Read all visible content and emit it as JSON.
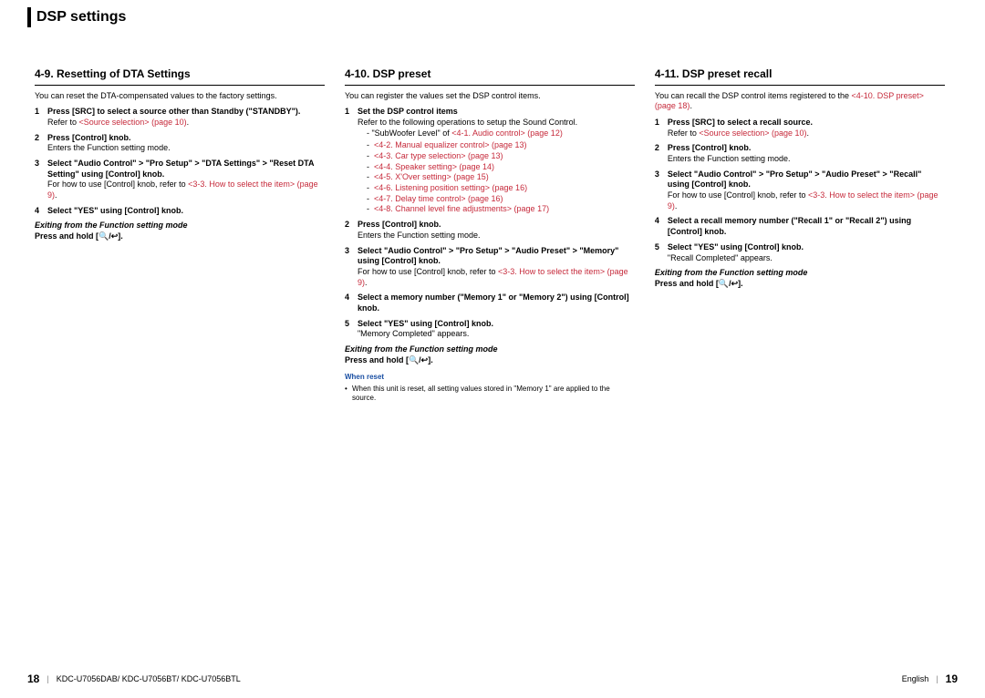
{
  "chapter_title": "DSP settings",
  "columns": [
    {
      "subhead": "4-9.  Resetting of DTA Settings",
      "intro": "You can reset the DTA-compensated values to the factory settings.",
      "steps": [
        {
          "title": "Press [SRC] to select a source other than Standby (\"STANDBY\").",
          "body_prefix": "Refer to ",
          "link": "<Source selection> (page 10)",
          "body_suffix": "."
        },
        {
          "title": "Press [Control] knob.",
          "body": "Enters the Function setting mode."
        },
        {
          "title": "Select \"Audio Control\" > \"Pro Setup\" > \"DTA Settings\" > \"Reset DTA Setting\" using [Control] knob.",
          "body_prefix": "For how to use [Control] knob, refer to ",
          "link": "<3-3. How to select the item> (page 9)",
          "body_suffix": "."
        },
        {
          "title": "Select \"YES\" using [Control] knob."
        }
      ],
      "exit_title": "Exiting from the Function setting mode",
      "exit_body": "Press and hold [🔍/↩]."
    },
    {
      "subhead": "4-10.  DSP preset",
      "intro": "You can register the values set the DSP control items.",
      "steps": [
        {
          "title": "Set the DSP control items",
          "body": "Refer to the following operations to setup the Sound Control.",
          "dash_intro_prefix": "\"SubWoofer Level\" of ",
          "dash_intro_link": "<4-1. Audio control> (page 12)",
          "dash": [
            "<4-2. Manual equalizer control> (page 13)",
            "<4-3. Car type selection> (page 13)",
            "<4-4. Speaker setting> (page 14)",
            "<4-5. X'Over setting> (page 15)",
            "<4-6. Listening position setting> (page 16)",
            "<4-7. Delay time control> (page 16)",
            "<4-8. Channel level fine adjustments> (page 17)"
          ]
        },
        {
          "title": "Press [Control] knob.",
          "body": "Enters the Function setting mode."
        },
        {
          "title": "Select \"Audio Control\" > \"Pro Setup\" > \"Audio Preset\" > \"Memory\" using [Control] knob.",
          "body_prefix": "For how to use [Control] knob, refer to ",
          "link": "<3-3. How to select the item> (page 9)",
          "body_suffix": "."
        },
        {
          "title": "Select a memory number (\"Memory 1\" or \"Memory 2\") using [Control] knob."
        },
        {
          "title": "Select \"YES\" using [Control] knob.",
          "body": "\"Memory Completed\" appears."
        }
      ],
      "exit_title": "Exiting from the Function setting mode",
      "exit_body": "Press and hold [🔍/↩].",
      "note_head": "When reset",
      "note_body": "When this unit is reset, all setting values stored in \"Memory 1\" are applied to the source."
    },
    {
      "subhead": "4-11.  DSP preset recall",
      "intro_prefix": "You can recall the DSP control items registered to the ",
      "intro_link": "<4-10. DSP preset> (page 18)",
      "intro_suffix": ".",
      "steps": [
        {
          "title": "Press [SRC] to select a recall source.",
          "body_prefix": "Refer to ",
          "link": "<Source selection> (page 10)",
          "body_suffix": "."
        },
        {
          "title": "Press [Control] knob.",
          "body": "Enters the Function setting mode."
        },
        {
          "title": "Select \"Audio Control\" > \"Pro Setup\" > \"Audio Preset\" > \"Recall\" using [Control] knob.",
          "body_prefix": "For how to use [Control] knob, refer to ",
          "link": "<3-3. How to select the item> (page 9)",
          "body_suffix": "."
        },
        {
          "title": "Select a recall memory number (\"Recall 1\" or \"Recall 2\") using [Control] knob."
        },
        {
          "title": "Select \"YES\" using [Control] knob.",
          "body": "\"Recall Completed\" appears."
        }
      ],
      "exit_title": "Exiting from the Function setting mode",
      "exit_body": "Press and hold [🔍/↩]."
    }
  ],
  "footer": {
    "left_page": "18",
    "left_models": "KDC-U7056DAB/ KDC-U7056BT/ KDC-U7056BTL",
    "right_lang": "English",
    "right_page": "19"
  }
}
